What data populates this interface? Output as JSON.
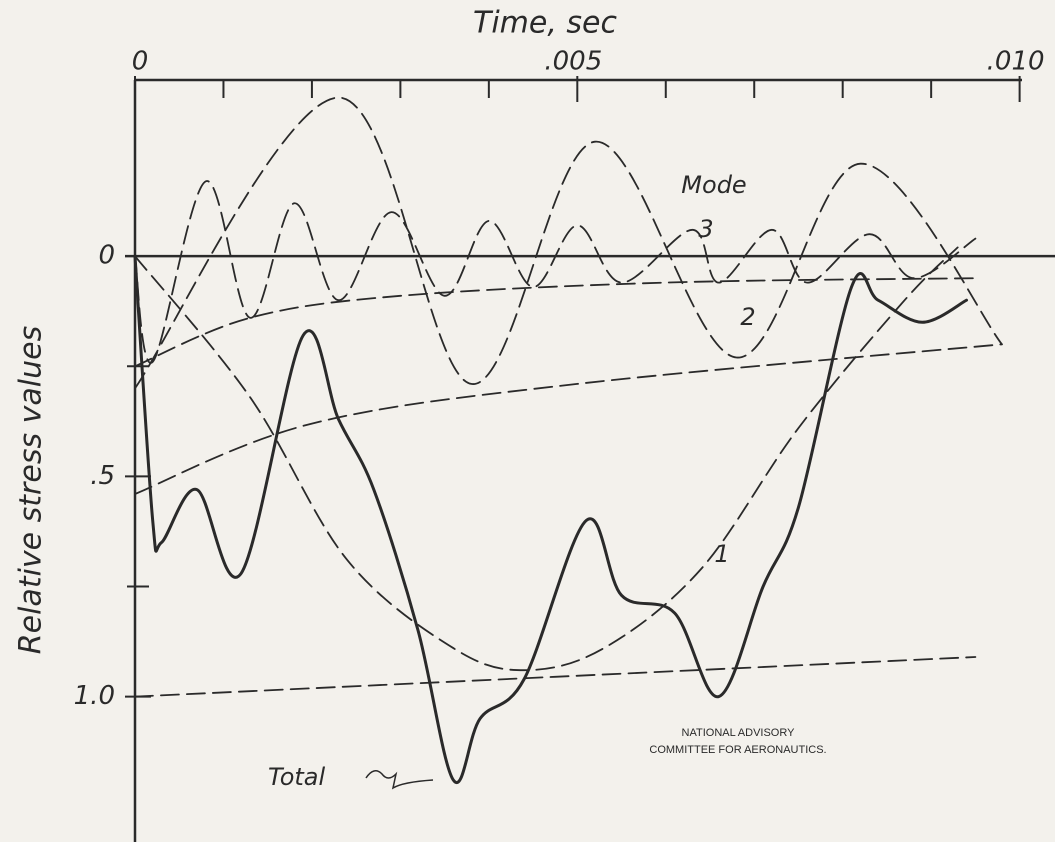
{
  "chart_data": {
    "type": "line",
    "title": "Time, sec",
    "y_label": "Relative stress values",
    "xlim": [
      0,
      0.0104
    ],
    "ylim": [
      -0.4,
      1.33
    ],
    "y_inverted": true,
    "xticks": [
      0,
      {
        "value": 0.005,
        "label": ".005"
      },
      {
        "value": 0.01,
        "label": ".010"
      }
    ],
    "x_minor_ticks": [
      0.001,
      0.002,
      0.003,
      0.004,
      0.006,
      0.007,
      0.008,
      0.009
    ],
    "yticks": [
      0,
      {
        "value": 0.5,
        "label": ".5"
      },
      {
        "value": 1,
        "label": "1.0"
      }
    ],
    "y_minor_ticks": [
      0.25,
      0.75
    ],
    "color": "#2a2a2a",
    "series": [
      {
        "style": "solid",
        "x": [
          0,
          0.0002,
          0.0003,
          0.0007,
          0.0012,
          0.0019,
          0.0023,
          0.0027,
          0.0032,
          0.0036,
          0.0039,
          0.0044,
          0.0051,
          0.0055,
          0.0061,
          0.0066,
          0.0071,
          0.0075,
          0.0081,
          0.0084,
          0.0089,
          0.0094
        ],
        "values": [
          0,
          0.6,
          0.65,
          0.53,
          0.72,
          0.18,
          0.37,
          0.53,
          0.85,
          1.19,
          1.05,
          0.96,
          0.6,
          0.77,
          0.81,
          1.0,
          0.75,
          0.57,
          0.07,
          0.1,
          0.15,
          0.1
        ]
      },
      {
        "style": "dashed",
        "x": [
          0,
          0.0013,
          0.0024,
          0.0036,
          0.0044,
          0.0053,
          0.0064,
          0.0075,
          0.0087,
          0.0093
        ],
        "values": [
          0,
          0.32,
          0.69,
          0.89,
          0.94,
          0.89,
          0.71,
          0.39,
          0.1,
          -0.02
        ]
      },
      {
        "style": "dashed",
        "x": [
          0,
          0.0023,
          0.0038,
          0.0052,
          0.0068,
          0.0082,
          0.0098
        ],
        "values": [
          0.3,
          -0.36,
          0.29,
          -0.26,
          0.23,
          -0.21,
          0.2
        ]
      },
      {
        "style": "dashed",
        "x": [
          0,
          0.0002,
          0.0008,
          0.0013,
          0.0018,
          0.0023,
          0.0029,
          0.0035,
          0.004,
          0.0045,
          0.005,
          0.0055,
          0.0063,
          0.0066,
          0.0072,
          0.0076,
          0.0083,
          0.0088,
          0.0095
        ],
        "values": [
          0,
          0.24,
          -0.17,
          0.14,
          -0.12,
          0.1,
          -0.1,
          0.09,
          -0.08,
          0.07,
          -0.07,
          0.06,
          -0.06,
          0.06,
          -0.06,
          0.06,
          -0.05,
          0.05,
          -0.04
        ]
      },
      {
        "style": "dashed",
        "x": [
          0,
          0.0013,
          0.003,
          0.006,
          0.0095
        ],
        "values": [
          0.25,
          0.14,
          0.09,
          0.06,
          0.05
        ]
      },
      {
        "style": "dashed",
        "x": [
          0,
          0.002,
          0.005,
          0.0098
        ],
        "values": [
          0.54,
          0.38,
          0.29,
          0.2
        ]
      },
      {
        "style": "dashed",
        "x": [
          0,
          0.0095
        ],
        "values": [
          1.0,
          0.91
        ]
      }
    ],
    "annotations": {
      "mode": "Mode",
      "mode_1": "1",
      "mode_2": "2",
      "mode_3": "3",
      "total": "Total",
      "credit_1": "NATIONAL ADVISORY",
      "credit_2": "COMMITTEE FOR AERONAUTICS."
    }
  }
}
